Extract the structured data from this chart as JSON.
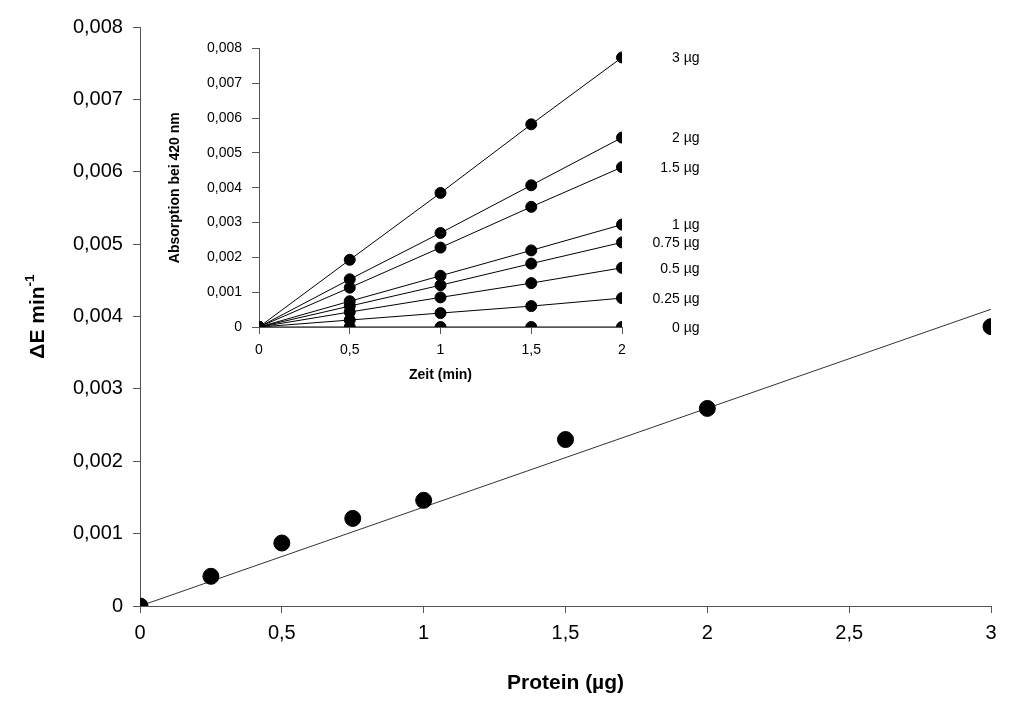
{
  "chart_data": [
    {
      "type": "scatter",
      "xlabel": "Protein (µg)",
      "ylabel": "ΔE min$^{-1}$",
      "marker": "circle",
      "legend": false,
      "xlim": [
        0,
        3
      ],
      "xticks": [
        0,
        {
          "value": 0.5,
          "label": "0,5"
        },
        1,
        {
          "value": 1.5,
          "label": "1,5"
        },
        2,
        {
          "value": 2.5,
          "label": "2,5"
        },
        3
      ],
      "ylim": [
        0,
        0.008
      ],
      "yticks": [
        0,
        {
          "value": 0.001,
          "label": "0,001"
        },
        {
          "value": 0.002,
          "label": "0,002"
        },
        {
          "value": 0.003,
          "label": "0,003"
        },
        {
          "value": 0.004,
          "label": "0,004"
        },
        {
          "value": 0.005,
          "label": "0,005"
        },
        {
          "value": 0.006,
          "label": "0,006"
        },
        {
          "value": 0.007,
          "label": "0,007"
        },
        {
          "value": 0.008,
          "label": "0,008"
        }
      ],
      "series": [
        {
          "color": "#000000",
          "x": [
            0,
            0.25,
            0.5,
            0.75,
            1,
            1.5,
            2,
            3
          ],
          "values": [
            0,
            0.00041,
            0.00087,
            0.00121,
            0.00146,
            0.0023,
            0.00273,
            0.00386
          ]
        },
        {
          "type": "line",
          "color": "#333333",
          "marker": "none",
          "x": [
            0,
            3
          ],
          "values": [
            0,
            0.0041
          ]
        }
      ]
    },
    {
      "type": "line",
      "xlabel": "Zeit (min)",
      "ylabel": "Absorption bei 420 nm",
      "marker": "circle",
      "legend": false,
      "x": [
        0,
        0.5,
        1,
        1.5,
        2
      ],
      "xlim": [
        0,
        2
      ],
      "xticks": [
        0,
        {
          "value": 0.5,
          "label": "0,5"
        },
        1,
        {
          "value": 1.5,
          "label": "1,5"
        },
        2
      ],
      "ylim": [
        0,
        0.008
      ],
      "yticks": [
        0,
        {
          "value": 0.001,
          "label": "0,001"
        },
        {
          "value": 0.002,
          "label": "0,002"
        },
        {
          "value": 0.003,
          "label": "0,003"
        },
        {
          "value": 0.004,
          "label": "0,004"
        },
        {
          "value": 0.005,
          "label": "0,005"
        },
        {
          "value": 0.006,
          "label": "0,006"
        },
        {
          "value": 0.007,
          "label": "0,007"
        },
        {
          "value": 0.008,
          "label": "0,008"
        }
      ],
      "series": [
        {
          "name": "3 µg",
          "color": "#000000",
          "values": [
            0,
            0.00193,
            0.00385,
            0.00582,
            0.00774
          ]
        },
        {
          "name": "2 µg",
          "color": "#000000",
          "values": [
            0,
            0.00137,
            0.0027,
            0.00407,
            0.00544
          ]
        },
        {
          "name": "1.5 µg",
          "color": "#000000",
          "values": [
            0,
            0.00113,
            0.00228,
            0.00345,
            0.00459
          ]
        },
        {
          "name": "1 µg",
          "color": "#000000",
          "values": [
            0,
            0.00074,
            0.00147,
            0.0022,
            0.00294
          ]
        },
        {
          "name": "0.75 µg",
          "color": "#000000",
          "values": [
            0,
            0.0006,
            0.0012,
            0.00182,
            0.00243
          ]
        },
        {
          "name": "0.5 µg",
          "color": "#000000",
          "values": [
            0,
            0.00043,
            0.00085,
            0.00126,
            0.0017
          ]
        },
        {
          "name": "0.25 µg",
          "color": "#000000",
          "values": [
            0,
            0.0002,
            0.0004,
            0.0006,
            0.00083
          ]
        },
        {
          "name": "0 µg",
          "color": "#000000",
          "values": [
            0,
            0,
            0,
            0,
            0
          ]
        }
      ]
    }
  ]
}
